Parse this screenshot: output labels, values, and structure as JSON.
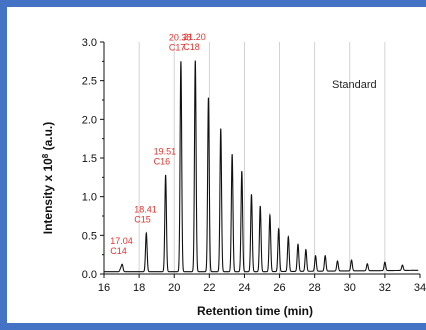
{
  "chart_data": {
    "type": "line",
    "xlabel": "Retention time (min)",
    "ylabel_base": "Intensity x 10",
    "ylabel_exp": "8",
    "ylabel_unit": " (a.u.)",
    "xlim": [
      16,
      34
    ],
    "ylim": [
      0,
      3.0
    ],
    "xticks": [
      16,
      18,
      20,
      22,
      24,
      26,
      28,
      30,
      32,
      34
    ],
    "yticks": [
      0.0,
      0.5,
      1.0,
      1.5,
      2.0,
      2.5,
      3.0
    ],
    "ytick_labels": [
      "0.0",
      "0.5",
      "1.0",
      "1.5",
      "2.0",
      "2.5",
      "3.0"
    ],
    "grid_x": [
      18,
      20,
      22,
      24,
      26,
      28,
      30,
      32
    ],
    "baseline": 0.03,
    "peaks": [
      [
        16.95,
        0.04
      ],
      [
        17.04,
        0.09
      ],
      [
        18.41,
        0.5
      ],
      [
        19.51,
        1.25
      ],
      [
        20.38,
        2.72
      ],
      [
        21.2,
        2.73
      ],
      [
        21.95,
        2.25
      ],
      [
        22.65,
        1.85
      ],
      [
        23.3,
        1.52
      ],
      [
        23.85,
        1.3
      ],
      [
        24.4,
        1.0
      ],
      [
        24.9,
        0.85
      ],
      [
        25.45,
        0.73
      ],
      [
        25.95,
        0.55
      ],
      [
        26.5,
        0.45
      ],
      [
        27.05,
        0.35
      ],
      [
        27.5,
        0.28
      ],
      [
        28.05,
        0.2
      ],
      [
        28.6,
        0.2
      ],
      [
        29.3,
        0.13
      ],
      [
        30.1,
        0.14
      ],
      [
        31.0,
        0.09
      ],
      [
        32.0,
        0.11
      ],
      [
        33.0,
        0.07
      ]
    ],
    "annotations": [
      {
        "time": "17.04",
        "name": "C14",
        "x": 17.04,
        "y": 0.09
      },
      {
        "time": "18.41",
        "name": "C15",
        "x": 18.41,
        "y": 0.5
      },
      {
        "time": "19.51",
        "name": "C16",
        "x": 19.51,
        "y": 1.25
      },
      {
        "time": "20.38",
        "name": "C17",
        "x": 20.38,
        "y": 2.72
      },
      {
        "time": "21.20",
        "name": "C18",
        "x": 21.2,
        "y": 2.73
      }
    ],
    "legend_text": "Standard",
    "colors": {
      "line": "#111111",
      "annotation": "#e8302c",
      "grid": "#c8c8c8",
      "frame": "#4472c4"
    }
  }
}
